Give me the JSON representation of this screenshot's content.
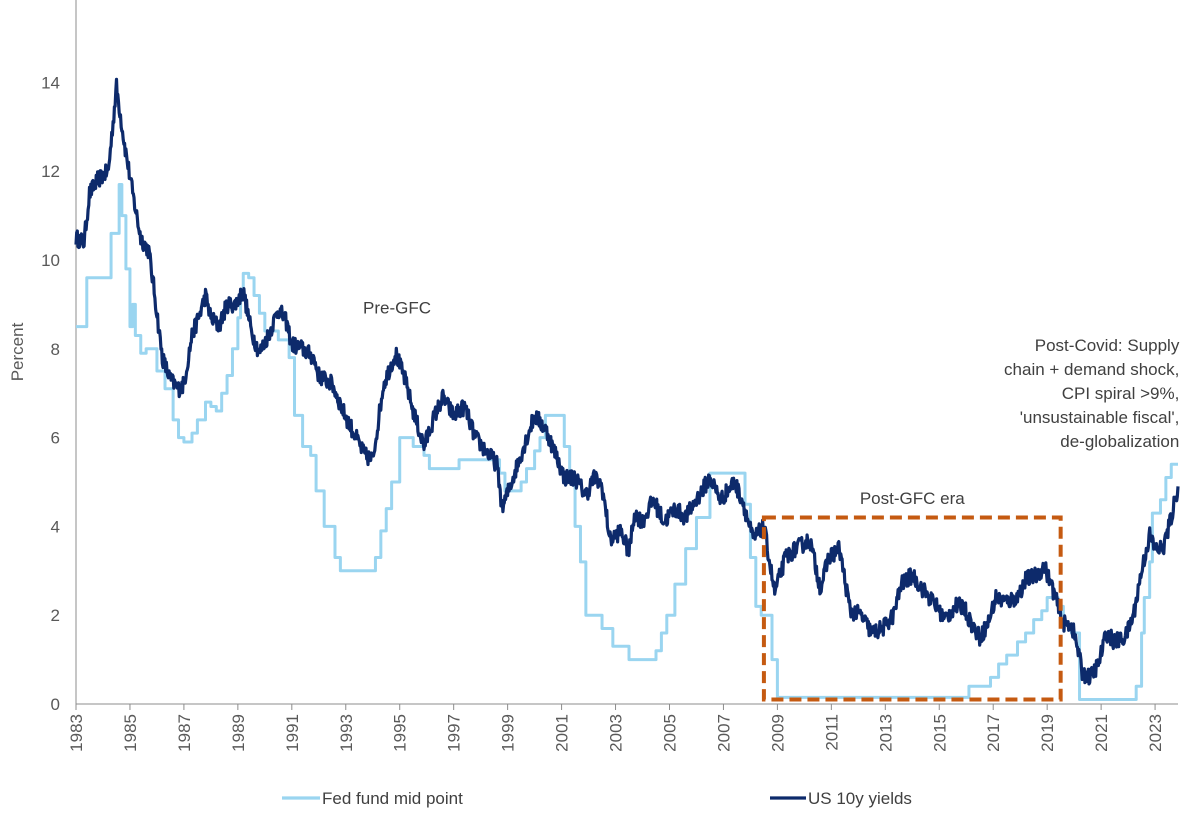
{
  "chart_data": {
    "type": "line",
    "title": "",
    "xlabel": "",
    "ylabel": "Percent",
    "xlim": [
      1983.0,
      2023.85
    ],
    "ylim": [
      0,
      15
    ],
    "y_ticks": [
      0,
      2,
      4,
      6,
      8,
      10,
      12,
      14
    ],
    "x_tick_labels": [
      "1983",
      "1985",
      "1987",
      "1989",
      "1991",
      "1993",
      "1995",
      "1997",
      "1999",
      "2001",
      "2003",
      "2005",
      "2007",
      "2009",
      "2011",
      "2013",
      "2015",
      "2017",
      "2019",
      "2021",
      "2023"
    ],
    "grid": false,
    "legend_position": "bottom",
    "series": [
      {
        "name": "Fed fund mid point",
        "color": "#9ad5f0",
        "style": "step",
        "points": [
          [
            1983.0,
            8.5
          ],
          [
            1983.4,
            9.6
          ],
          [
            1983.8,
            9.6
          ],
          [
            1984.3,
            10.6
          ],
          [
            1984.6,
            11.7
          ],
          [
            1984.7,
            11.0
          ],
          [
            1984.85,
            9.8
          ],
          [
            1985.0,
            8.5
          ],
          [
            1985.1,
            9.0
          ],
          [
            1985.2,
            8.3
          ],
          [
            1985.4,
            7.9
          ],
          [
            1985.6,
            8.0
          ],
          [
            1985.8,
            8.0
          ],
          [
            1986.0,
            7.5
          ],
          [
            1986.3,
            7.1
          ],
          [
            1986.6,
            6.4
          ],
          [
            1986.8,
            6.0
          ],
          [
            1987.0,
            5.9
          ],
          [
            1987.3,
            6.1
          ],
          [
            1987.5,
            6.4
          ],
          [
            1987.8,
            6.8
          ],
          [
            1988.0,
            6.7
          ],
          [
            1988.2,
            6.6
          ],
          [
            1988.4,
            7.0
          ],
          [
            1988.6,
            7.4
          ],
          [
            1988.8,
            8.0
          ],
          [
            1989.0,
            8.7
          ],
          [
            1989.1,
            9.3
          ],
          [
            1989.2,
            9.7
          ],
          [
            1989.4,
            9.6
          ],
          [
            1989.6,
            9.2
          ],
          [
            1989.8,
            8.8
          ],
          [
            1990.0,
            8.4
          ],
          [
            1990.5,
            8.2
          ],
          [
            1990.9,
            7.8
          ],
          [
            1991.1,
            6.5
          ],
          [
            1991.4,
            5.8
          ],
          [
            1991.7,
            5.6
          ],
          [
            1991.9,
            4.8
          ],
          [
            1992.2,
            4.0
          ],
          [
            1992.6,
            3.3
          ],
          [
            1992.8,
            3.0
          ],
          [
            1993.0,
            3.0
          ],
          [
            1994.1,
            3.3
          ],
          [
            1994.3,
            3.9
          ],
          [
            1994.5,
            4.4
          ],
          [
            1994.7,
            5.0
          ],
          [
            1995.0,
            6.0
          ],
          [
            1995.5,
            5.8
          ],
          [
            1995.9,
            5.6
          ],
          [
            1996.1,
            5.3
          ],
          [
            1997.2,
            5.5
          ],
          [
            1998.7,
            5.2
          ],
          [
            1998.9,
            4.8
          ],
          [
            1999.5,
            5.0
          ],
          [
            1999.7,
            5.3
          ],
          [
            2000.0,
            5.7
          ],
          [
            2000.2,
            6.0
          ],
          [
            2000.4,
            6.5
          ],
          [
            2000.9,
            6.5
          ],
          [
            2001.1,
            5.8
          ],
          [
            2001.3,
            5.0
          ],
          [
            2001.5,
            4.0
          ],
          [
            2001.7,
            3.2
          ],
          [
            2001.9,
            2.0
          ],
          [
            2002.5,
            1.7
          ],
          [
            2002.9,
            1.3
          ],
          [
            2003.5,
            1.0
          ],
          [
            2004.5,
            1.2
          ],
          [
            2004.7,
            1.6
          ],
          [
            2004.9,
            2.0
          ],
          [
            2005.2,
            2.7
          ],
          [
            2005.6,
            3.5
          ],
          [
            2006.0,
            4.2
          ],
          [
            2006.5,
            5.2
          ],
          [
            2007.6,
            5.2
          ],
          [
            2007.8,
            4.5
          ],
          [
            2008.0,
            3.3
          ],
          [
            2008.2,
            2.2
          ],
          [
            2008.4,
            2.0
          ],
          [
            2008.8,
            1.0
          ],
          [
            2009.0,
            0.15
          ],
          [
            2015.9,
            0.15
          ],
          [
            2016.1,
            0.4
          ],
          [
            2016.9,
            0.6
          ],
          [
            2017.2,
            0.9
          ],
          [
            2017.5,
            1.1
          ],
          [
            2017.9,
            1.4
          ],
          [
            2018.2,
            1.6
          ],
          [
            2018.5,
            1.9
          ],
          [
            2018.8,
            2.1
          ],
          [
            2019.0,
            2.4
          ],
          [
            2019.4,
            2.2
          ],
          [
            2019.6,
            1.8
          ],
          [
            2019.9,
            1.6
          ],
          [
            2020.2,
            0.1
          ],
          [
            2022.2,
            0.1
          ],
          [
            2022.3,
            0.4
          ],
          [
            2022.5,
            1.6
          ],
          [
            2022.6,
            2.4
          ],
          [
            2022.8,
            3.2
          ],
          [
            2022.9,
            4.3
          ],
          [
            2023.2,
            4.6
          ],
          [
            2023.4,
            5.1
          ],
          [
            2023.6,
            5.4
          ],
          [
            2023.85,
            5.4
          ]
        ]
      },
      {
        "name": "US 10y yields",
        "color": "#0d2a6b",
        "style": "noisy",
        "points": [
          [
            1983.0,
            10.5
          ],
          [
            1983.3,
            10.4
          ],
          [
            1983.5,
            11.5
          ],
          [
            1983.8,
            11.8
          ],
          [
            1984.2,
            12.0
          ],
          [
            1984.5,
            13.9
          ],
          [
            1984.8,
            12.6
          ],
          [
            1985.1,
            11.5
          ],
          [
            1985.4,
            10.5
          ],
          [
            1985.7,
            10.2
          ],
          [
            1985.9,
            9.3
          ],
          [
            1986.2,
            7.8
          ],
          [
            1986.5,
            7.3
          ],
          [
            1986.8,
            7.1
          ],
          [
            1987.0,
            7.2
          ],
          [
            1987.3,
            8.3
          ],
          [
            1987.6,
            8.8
          ],
          [
            1987.8,
            9.2
          ],
          [
            1988.0,
            8.7
          ],
          [
            1988.3,
            8.5
          ],
          [
            1988.6,
            9.0
          ],
          [
            1988.9,
            9.0
          ],
          [
            1989.2,
            9.3
          ],
          [
            1989.5,
            8.4
          ],
          [
            1989.8,
            7.9
          ],
          [
            1990.2,
            8.4
          ],
          [
            1990.5,
            8.9
          ],
          [
            1990.8,
            8.6
          ],
          [
            1991.0,
            8.1
          ],
          [
            1991.4,
            8.0
          ],
          [
            1991.8,
            7.8
          ],
          [
            1992.0,
            7.4
          ],
          [
            1992.5,
            7.2
          ],
          [
            1992.9,
            6.6
          ],
          [
            1993.3,
            6.1
          ],
          [
            1993.7,
            5.6
          ],
          [
            1994.0,
            5.5
          ],
          [
            1994.4,
            7.2
          ],
          [
            1994.85,
            7.9
          ],
          [
            1995.2,
            7.3
          ],
          [
            1995.5,
            6.6
          ],
          [
            1995.9,
            5.8
          ],
          [
            1996.3,
            6.5
          ],
          [
            1996.6,
            6.9
          ],
          [
            1997.0,
            6.5
          ],
          [
            1997.4,
            6.7
          ],
          [
            1997.8,
            6.0
          ],
          [
            1998.2,
            5.7
          ],
          [
            1998.6,
            5.4
          ],
          [
            1998.8,
            4.4
          ],
          [
            1999.2,
            5.1
          ],
          [
            1999.6,
            5.8
          ],
          [
            2000.0,
            6.5
          ],
          [
            2000.4,
            6.2
          ],
          [
            2000.8,
            5.6
          ],
          [
            2001.1,
            5.1
          ],
          [
            2001.5,
            5.1
          ],
          [
            2001.9,
            4.7
          ],
          [
            2002.2,
            5.1
          ],
          [
            2002.5,
            4.9
          ],
          [
            2002.8,
            3.7
          ],
          [
            2003.2,
            3.9
          ],
          [
            2003.5,
            3.4
          ],
          [
            2003.7,
            4.3
          ],
          [
            2004.0,
            4.1
          ],
          [
            2004.4,
            4.6
          ],
          [
            2004.8,
            4.1
          ],
          [
            2005.2,
            4.4
          ],
          [
            2005.6,
            4.2
          ],
          [
            2006.0,
            4.6
          ],
          [
            2006.5,
            5.1
          ],
          [
            2006.9,
            4.6
          ],
          [
            2007.4,
            5.0
          ],
          [
            2007.7,
            4.6
          ],
          [
            2008.1,
            3.7
          ],
          [
            2008.5,
            4.0
          ],
          [
            2008.9,
            2.5
          ],
          [
            2009.3,
            3.3
          ],
          [
            2009.7,
            3.5
          ],
          [
            2010.2,
            3.7
          ],
          [
            2010.6,
            2.6
          ],
          [
            2010.9,
            3.3
          ],
          [
            2011.3,
            3.5
          ],
          [
            2011.7,
            2.1
          ],
          [
            2012.1,
            2.0
          ],
          [
            2012.5,
            1.6
          ],
          [
            2012.9,
            1.7
          ],
          [
            2013.3,
            2.0
          ],
          [
            2013.6,
            2.7
          ],
          [
            2014.0,
            2.9
          ],
          [
            2014.5,
            2.5
          ],
          [
            2014.9,
            2.2
          ],
          [
            2015.2,
            1.9
          ],
          [
            2015.6,
            2.2
          ],
          [
            2015.9,
            2.2
          ],
          [
            2016.2,
            1.8
          ],
          [
            2016.5,
            1.5
          ],
          [
            2016.8,
            1.8
          ],
          [
            2017.1,
            2.4
          ],
          [
            2017.5,
            2.3
          ],
          [
            2017.9,
            2.4
          ],
          [
            2018.2,
            2.8
          ],
          [
            2018.6,
            2.9
          ],
          [
            2018.9,
            3.1
          ],
          [
            2019.2,
            2.6
          ],
          [
            2019.6,
            1.8
          ],
          [
            2019.9,
            1.8
          ],
          [
            2020.15,
            1.2
          ],
          [
            2020.3,
            0.7
          ],
          [
            2020.6,
            0.6
          ],
          [
            2020.9,
            0.9
          ],
          [
            2021.2,
            1.6
          ],
          [
            2021.5,
            1.4
          ],
          [
            2021.9,
            1.5
          ],
          [
            2022.2,
            2.0
          ],
          [
            2022.5,
            3.0
          ],
          [
            2022.8,
            3.8
          ],
          [
            2023.0,
            3.5
          ],
          [
            2023.3,
            3.5
          ],
          [
            2023.6,
            4.2
          ],
          [
            2023.85,
            4.9
          ]
        ]
      }
    ],
    "annotations": [
      {
        "id": "pre-gfc",
        "lines": [
          "Pre-GFC"
        ],
        "x": 1994.9,
        "y": 8.8,
        "anchor": "middle"
      },
      {
        "id": "post-gfc",
        "lines": [
          "Post-GFC era"
        ],
        "x": 2014.0,
        "y": 4.5,
        "anchor": "middle"
      },
      {
        "id": "post-covid",
        "lines": [
          "Post-Covid: Supply",
          "chain + demand shock,",
          "CPI spiral >9%,",
          "'unsustainable fiscal',",
          "de-globalization"
        ],
        "x": 2023.9,
        "y": 7.95,
        "anchor": "end"
      }
    ],
    "highlight_box": {
      "label": "Post-GFC era",
      "x0": 2008.5,
      "x1": 2019.5,
      "y0": 0.1,
      "y1": 4.2,
      "color": "#c55a11"
    }
  }
}
